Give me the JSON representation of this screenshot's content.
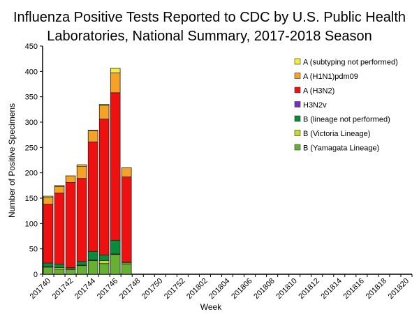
{
  "chart_data": {
    "type": "bar",
    "stacked": true,
    "title": "Influenza Positive Tests Reported to CDC by U.S. Public Health Laboratories, National Summary, 2017-2018 Season",
    "title_lines": [
      "Influenza Positive Tests Reported to CDC by U.S. Public Health",
      "Laboratories, National Summary, 2017-2018 Season"
    ],
    "xlabel": "Week",
    "ylabel": "Number of Positive Specimens",
    "ylim": [
      0,
      450
    ],
    "yticks": [
      0,
      50,
      100,
      150,
      200,
      250,
      300,
      350,
      400,
      450
    ],
    "grid": false,
    "legend_placement": "right",
    "categories": [
      "201740",
      "201741",
      "201742",
      "201743",
      "201744",
      "201745",
      "201746",
      "201747",
      "201748",
      "201749",
      "201750",
      "201751",
      "201752",
      "201801",
      "201802",
      "201803",
      "201804",
      "201805",
      "201806",
      "201807",
      "201808",
      "201809",
      "201810",
      "201811",
      "201812",
      "201813",
      "201814",
      "201815",
      "201816",
      "201817",
      "201818",
      "201819",
      "201820"
    ],
    "xtick_labels": [
      "201740",
      "201742",
      "201744",
      "201746",
      "201748",
      "201750",
      "201752",
      "201802",
      "201804",
      "201806",
      "201808",
      "201810",
      "201812",
      "201814",
      "201816",
      "201818",
      "201820"
    ],
    "series": [
      {
        "name": "B (Yamagata Lineage)",
        "color": "#66b032",
        "values": [
          14,
          10,
          9,
          17,
          27,
          21,
          39,
          19,
          0,
          0,
          0,
          0,
          0,
          0,
          0,
          0,
          0,
          0,
          0,
          0,
          0,
          0,
          0,
          0,
          0,
          0,
          0,
          0,
          0,
          0,
          0,
          0,
          0
        ]
      },
      {
        "name": "B (Victoria Lineage)",
        "color": "#c6d92e",
        "values": [
          1,
          3,
          2,
          1,
          1,
          6,
          1,
          3,
          0,
          0,
          0,
          0,
          0,
          0,
          0,
          0,
          0,
          0,
          0,
          0,
          0,
          0,
          0,
          0,
          0,
          0,
          0,
          0,
          0,
          0,
          0,
          0,
          0
        ]
      },
      {
        "name": "B (lineage not performed)",
        "color": "#0c8a3c",
        "values": [
          7,
          7,
          2,
          7,
          17,
          11,
          27,
          2,
          0,
          0,
          0,
          0,
          0,
          0,
          0,
          0,
          0,
          0,
          0,
          0,
          0,
          0,
          0,
          0,
          0,
          0,
          0,
          0,
          0,
          0,
          0,
          0,
          0
        ]
      },
      {
        "name": "H3N2v",
        "color": "#7b2fbe",
        "values": [
          0,
          0,
          0,
          0,
          0,
          0,
          0,
          0,
          0,
          0,
          0,
          0,
          0,
          0,
          0,
          0,
          0,
          0,
          0,
          0,
          0,
          0,
          0,
          0,
          0,
          0,
          0,
          0,
          0,
          0,
          0,
          0,
          0
        ]
      },
      {
        "name": "A (H3N2)",
        "color": "#f01010",
        "values": [
          116,
          140,
          168,
          164,
          216,
          268,
          291,
          168,
          0,
          0,
          0,
          0,
          0,
          0,
          0,
          0,
          0,
          0,
          0,
          0,
          0,
          0,
          0,
          0,
          0,
          0,
          0,
          0,
          0,
          0,
          0,
          0,
          0
        ]
      },
      {
        "name": "A (H1N1)pdm09",
        "color": "#f5a326",
        "values": [
          13,
          13,
          13,
          24,
          22,
          27,
          39,
          18,
          0,
          0,
          0,
          0,
          0,
          0,
          0,
          0,
          0,
          0,
          0,
          0,
          0,
          0,
          0,
          0,
          0,
          0,
          0,
          0,
          0,
          0,
          0,
          0,
          0
        ]
      },
      {
        "name": "A (subtyping not performed)",
        "color": "#f7ee3a",
        "values": [
          3,
          2,
          0,
          3,
          1,
          2,
          9,
          0,
          0,
          0,
          0,
          0,
          0,
          0,
          0,
          0,
          0,
          0,
          0,
          0,
          0,
          0,
          0,
          0,
          0,
          0,
          0,
          0,
          0,
          0,
          0,
          0,
          0
        ]
      }
    ],
    "legend_order": [
      "A (subtyping not performed)",
      "A (H1N1)pdm09",
      "A (H3N2)",
      "H3N2v",
      "B (lineage not performed)",
      "B (Victoria Lineage)",
      "B (Yamagata Lineage)"
    ]
  }
}
